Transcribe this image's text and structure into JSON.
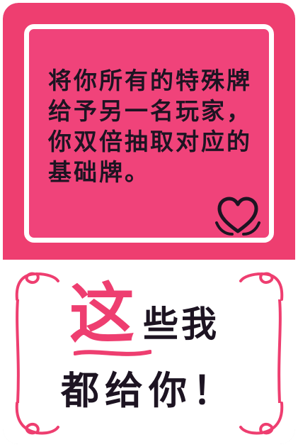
{
  "card": {
    "description": "将你所有的特殊牌给予另一名玩家，你双倍抽取对应的基础牌。",
    "accent_color": "#ee3e70",
    "text_color": "#1d1422",
    "icon": "heart-icon"
  },
  "slogan": {
    "big_char": "这",
    "line1": "些我",
    "line2": "都给你！"
  }
}
